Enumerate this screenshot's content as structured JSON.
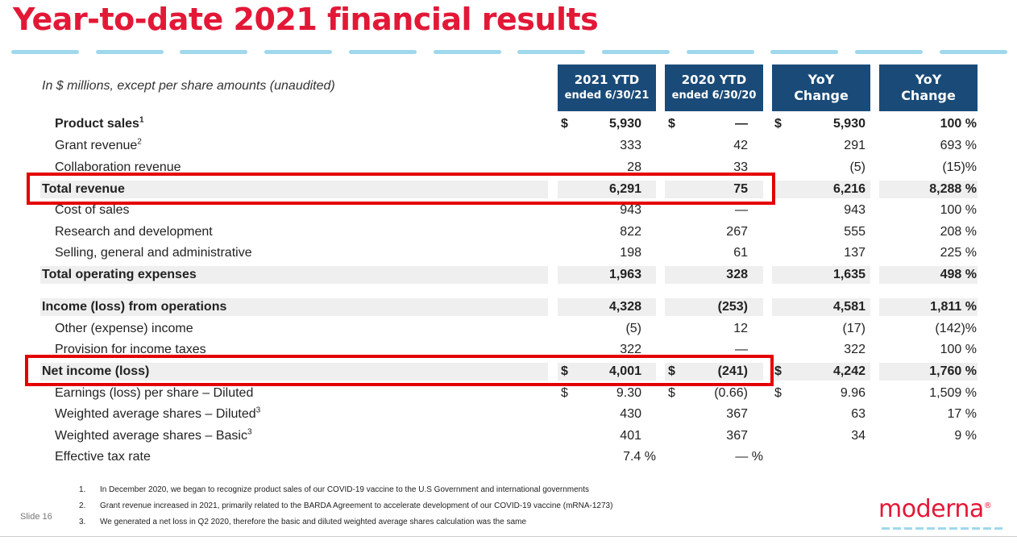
{
  "title": "Year-to-date 2021 financial results",
  "subtitle": "In $ millions, except per share amounts (unaudited)",
  "columns": {
    "c2021": {
      "line1": "2021 YTD",
      "line2": "ended 6/30/21"
    },
    "c2020": {
      "line1": "2020 YTD",
      "line2": "ended 6/30/20"
    },
    "yoy1": {
      "line1": "YoY",
      "line2": "Change"
    },
    "yoy2": {
      "line1": "YoY",
      "line2": "Change"
    }
  },
  "rows": [
    {
      "label": "Product sales",
      "sup": "1",
      "c2021": "5,930",
      "c2020": "—",
      "yoy": "5,930",
      "pct": "100 %"
    },
    {
      "label": "Grant revenue",
      "sup": "2",
      "c2021": "333",
      "c2020": "42",
      "yoy": "291",
      "pct": "693 %"
    },
    {
      "label": "Collaboration revenue",
      "c2021": "28",
      "c2020": "33",
      "yoy": "(5)",
      "pct": "(15)%"
    },
    {
      "label": "Total revenue",
      "c2021": "6,291",
      "c2020": "75",
      "yoy": "6,216",
      "pct": "8,288 %"
    },
    {
      "label": "Cost of sales",
      "c2021": "943",
      "c2020": "—",
      "yoy": "943",
      "pct": "100 %"
    },
    {
      "label": "Research and development",
      "c2021": "822",
      "c2020": "267",
      "yoy": "555",
      "pct": "208 %"
    },
    {
      "label": "Selling, general and administrative",
      "c2021": "198",
      "c2020": "61",
      "yoy": "137",
      "pct": "225 %"
    },
    {
      "label": "Total operating expenses",
      "c2021": "1,963",
      "c2020": "328",
      "yoy": "1,635",
      "pct": "498 %"
    },
    {
      "label": "Income (loss) from operations",
      "c2021": "4,328",
      "c2020": "(253)",
      "yoy": "4,581",
      "pct": "1,811 %"
    },
    {
      "label": "Other (expense) income",
      "c2021": "(5)",
      "c2020": "12",
      "yoy": "(17)",
      "pct": "(142)%"
    },
    {
      "label": "Provision for income taxes",
      "c2021": "322",
      "c2020": "—",
      "yoy": "322",
      "pct": "100 %"
    },
    {
      "label": "Net income (loss)",
      "c2021": "4,001",
      "c2020": "(241)",
      "yoy": "4,242",
      "pct": "1,760 %"
    },
    {
      "label": "Earnings (loss) per share – Diluted",
      "c2021": "9.30",
      "c2020": "(0.66)",
      "yoy": "9.96",
      "pct": "1,509 %"
    },
    {
      "label": "Weighted average shares – Diluted",
      "sup": "3",
      "c2021": "430",
      "c2020": "367",
      "yoy": "63",
      "pct": "17 %"
    },
    {
      "label": "Weighted average shares – Basic",
      "sup": "3",
      "c2021": "401",
      "c2020": "367",
      "yoy": "34",
      "pct": "9 %"
    },
    {
      "label": "Effective tax rate",
      "c2021": "7.4 %",
      "c2020": "— %",
      "yoy": "",
      "pct": ""
    }
  ],
  "currency_symbol": "$",
  "footnotes": [
    {
      "num": "1.",
      "text": "In December 2020, we began to recognize product sales of our COVID-19 vaccine to the U.S Government and international governments"
    },
    {
      "num": "2.",
      "text": "Grant revenue increased in 2021, primarily related to the BARDA Agreement to accelerate development of our COVID-19 vaccine (mRNA-1273)"
    },
    {
      "num": "3.",
      "text": "We generated a net loss in Q2 2020, therefore the basic and diluted weighted average shares calculation was the same"
    }
  ],
  "slide_label": "Slide 16",
  "logo_text": "moderna",
  "logo_mark": "®",
  "colors": {
    "accent": "#e31837",
    "header_bg": "#1a4b78",
    "highlight": "#e40000",
    "band": "#efefef",
    "dash": "#9fd8ec"
  }
}
